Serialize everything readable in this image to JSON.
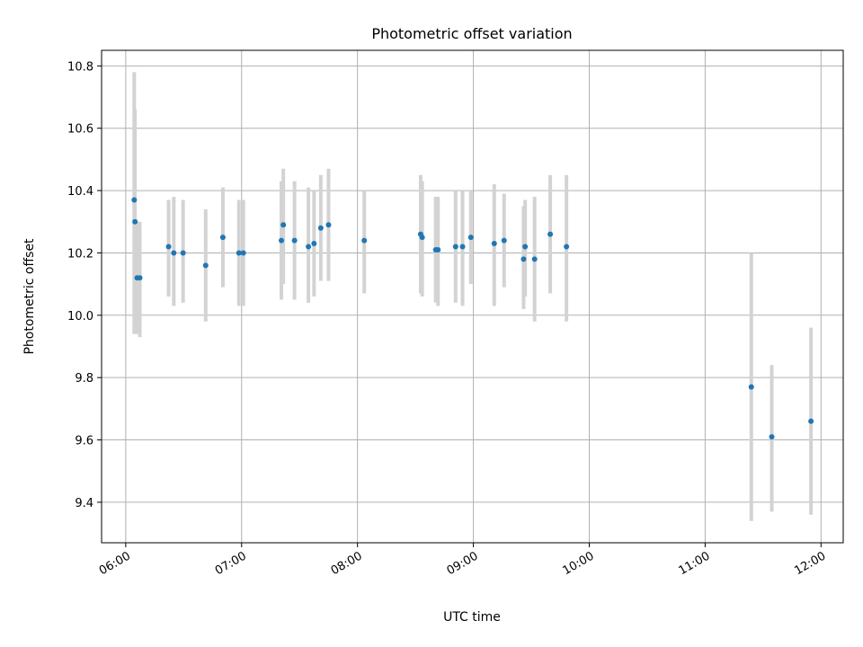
{
  "chart_data": {
    "type": "scatter",
    "title": "Photometric offset variation",
    "xlabel": "UTC time",
    "ylabel": "Photometric offset",
    "x_tick_labels": [
      "06:00",
      "07:00",
      "08:00",
      "09:00",
      "10:00",
      "11:00",
      "12:00"
    ],
    "x_tick_values": [
      360,
      420,
      480,
      540,
      600,
      660,
      720
    ],
    "y_tick_labels": [
      "9.4",
      "9.6",
      "9.8",
      "10.0",
      "10.2",
      "10.4",
      "10.6",
      "10.8"
    ],
    "y_tick_values": [
      9.4,
      9.6,
      9.8,
      10.0,
      10.2,
      10.4,
      10.6,
      10.8
    ],
    "xlim": [
      347.5,
      731.5
    ],
    "ylim": [
      9.27,
      10.85
    ],
    "grid": true,
    "point_color": "#1f77b4",
    "errorbar_color": "#d3d3d3",
    "series": [
      {
        "points": [
          {
            "x": 364.4,
            "y": 10.37,
            "lo": 9.94,
            "hi": 10.78
          },
          {
            "x": 364.8,
            "y": 10.3,
            "lo": 9.94,
            "hi": 10.66
          },
          {
            "x": 365.9,
            "y": 10.12,
            "lo": 9.94,
            "hi": 10.3
          },
          {
            "x": 367.3,
            "y": 10.12,
            "lo": 9.93,
            "hi": 10.3
          },
          {
            "x": 382.2,
            "y": 10.22,
            "lo": 10.06,
            "hi": 10.37
          },
          {
            "x": 384.9,
            "y": 10.2,
            "lo": 10.03,
            "hi": 10.38
          },
          {
            "x": 389.7,
            "y": 10.2,
            "lo": 10.04,
            "hi": 10.37
          },
          {
            "x": 401.4,
            "y": 10.16,
            "lo": 9.98,
            "hi": 10.34
          },
          {
            "x": 410.3,
            "y": 10.25,
            "lo": 10.09,
            "hi": 10.41
          },
          {
            "x": 418.6,
            "y": 10.2,
            "lo": 10.03,
            "hi": 10.37
          },
          {
            "x": 420.9,
            "y": 10.2,
            "lo": 10.03,
            "hi": 10.37
          },
          {
            "x": 440.6,
            "y": 10.24,
            "lo": 10.05,
            "hi": 10.43
          },
          {
            "x": 441.6,
            "y": 10.29,
            "lo": 10.1,
            "hi": 10.47
          },
          {
            "x": 447.4,
            "y": 10.24,
            "lo": 10.05,
            "hi": 10.43
          },
          {
            "x": 454.6,
            "y": 10.22,
            "lo": 10.04,
            "hi": 10.41
          },
          {
            "x": 457.5,
            "y": 10.23,
            "lo": 10.06,
            "hi": 10.4
          },
          {
            "x": 461.0,
            "y": 10.28,
            "lo": 10.11,
            "hi": 10.45
          },
          {
            "x": 465.0,
            "y": 10.29,
            "lo": 10.11,
            "hi": 10.47
          },
          {
            "x": 483.5,
            "y": 10.24,
            "lo": 10.07,
            "hi": 10.4
          },
          {
            "x": 512.7,
            "y": 10.26,
            "lo": 10.07,
            "hi": 10.45
          },
          {
            "x": 513.5,
            "y": 10.25,
            "lo": 10.06,
            "hi": 10.43
          },
          {
            "x": 520.5,
            "y": 10.21,
            "lo": 10.04,
            "hi": 10.38
          },
          {
            "x": 521.7,
            "y": 10.21,
            "lo": 10.03,
            "hi": 10.38
          },
          {
            "x": 530.8,
            "y": 10.22,
            "lo": 10.04,
            "hi": 10.4
          },
          {
            "x": 534.4,
            "y": 10.22,
            "lo": 10.03,
            "hi": 10.4
          },
          {
            "x": 538.7,
            "y": 10.25,
            "lo": 10.1,
            "hi": 10.4
          },
          {
            "x": 550.8,
            "y": 10.23,
            "lo": 10.03,
            "hi": 10.42
          },
          {
            "x": 555.9,
            "y": 10.24,
            "lo": 10.09,
            "hi": 10.39
          },
          {
            "x": 566.0,
            "y": 10.18,
            "lo": 10.02,
            "hi": 10.35
          },
          {
            "x": 566.8,
            "y": 10.22,
            "lo": 10.06,
            "hi": 10.37
          },
          {
            "x": 571.7,
            "y": 10.18,
            "lo": 9.98,
            "hi": 10.38
          },
          {
            "x": 579.8,
            "y": 10.26,
            "lo": 10.07,
            "hi": 10.45
          },
          {
            "x": 588.2,
            "y": 10.22,
            "lo": 9.98,
            "hi": 10.45
          },
          {
            "x": 683.9,
            "y": 9.77,
            "lo": 9.34,
            "hi": 10.2
          },
          {
            "x": 694.5,
            "y": 9.61,
            "lo": 9.37,
            "hi": 9.84
          },
          {
            "x": 714.8,
            "y": 9.66,
            "lo": 9.36,
            "hi": 9.96
          }
        ]
      }
    ]
  }
}
